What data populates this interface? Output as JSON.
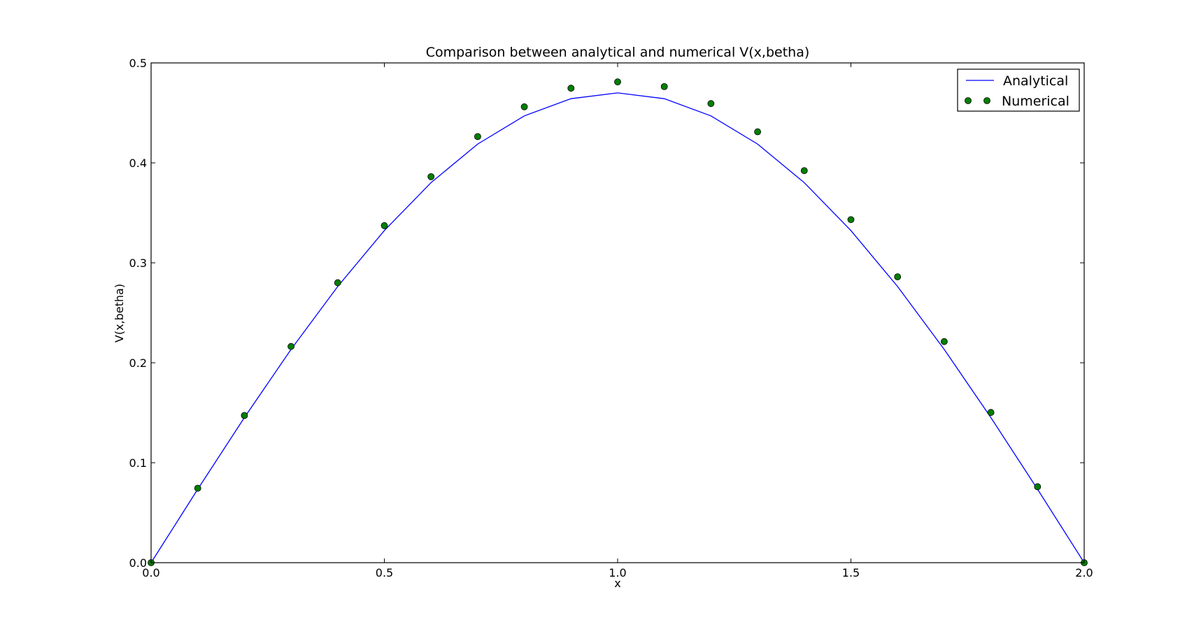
{
  "chart_data": {
    "type": "scatter",
    "title": "Comparison between analytical and numerical V(x,betha)",
    "xlabel": "x",
    "ylabel": "V(x,betha)",
    "xlim": [
      0.0,
      2.0
    ],
    "ylim": [
      0.0,
      0.5
    ],
    "xticks": [
      0.0,
      0.5,
      1.0,
      1.5,
      2.0
    ],
    "xtick_labels": [
      "0.0",
      "0.5",
      "1.0",
      "1.5",
      "2.0"
    ],
    "yticks": [
      0.0,
      0.1,
      0.2,
      0.3,
      0.4,
      0.5
    ],
    "ytick_labels": [
      "0.0",
      "0.1",
      "0.2",
      "0.3",
      "0.4",
      "0.5"
    ],
    "grid": false,
    "legend_position": "top-right",
    "series": [
      {
        "name": "Analytical",
        "kind": "line",
        "color": "#0000ff",
        "x": [
          0.0,
          0.1,
          0.2,
          0.3,
          0.4,
          0.5,
          0.6,
          0.7,
          0.8,
          0.9,
          1.0,
          1.1,
          1.2,
          1.3,
          1.4,
          1.5,
          1.6,
          1.7,
          1.8,
          1.9,
          2.0
        ],
        "y": [
          0.0,
          0.0735,
          0.1452,
          0.2134,
          0.2763,
          0.3323,
          0.3802,
          0.4188,
          0.447,
          0.4642,
          0.47,
          0.4642,
          0.447,
          0.4188,
          0.3802,
          0.3323,
          0.2763,
          0.2134,
          0.1452,
          0.0735,
          0.0
        ]
      },
      {
        "name": "Numerical",
        "kind": "scatter",
        "color": "#007f00",
        "x": [
          0.0,
          0.1,
          0.2,
          0.3,
          0.4,
          0.5,
          0.6,
          0.7,
          0.8,
          0.9,
          1.0,
          1.1,
          1.2,
          1.3,
          1.4,
          1.5,
          1.6,
          1.7,
          1.8,
          1.9,
          2.0
        ],
        "y": [
          0.0,
          0.0745,
          0.1473,
          0.2163,
          0.2801,
          0.3372,
          0.3862,
          0.4263,
          0.4561,
          0.4747,
          0.481,
          0.4763,
          0.4593,
          0.4311,
          0.3922,
          0.3432,
          0.286,
          0.2212,
          0.1503,
          0.076,
          0.0
        ]
      }
    ]
  }
}
